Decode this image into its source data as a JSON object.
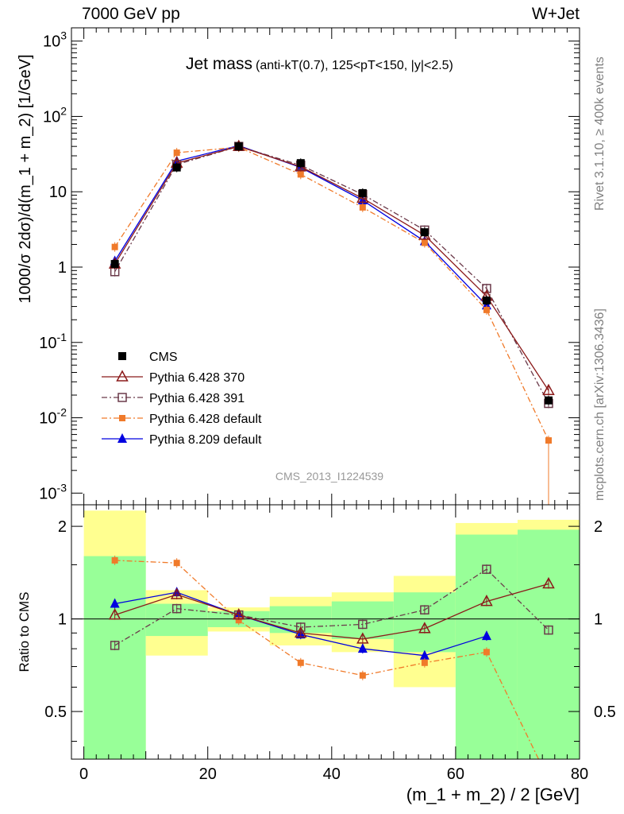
{
  "header": {
    "left": "7000 GeV pp",
    "right": "W+Jet"
  },
  "side_labels": {
    "rivet": "Rivet 3.1.10, ≥ 400k events",
    "mcplots": "mcplots.cern.ch [arXiv:1306.3436]"
  },
  "analysis_tag": "CMS_2013_I1224539",
  "chart_data": [
    {
      "type": "line",
      "panel": "main",
      "title": "Jet mass",
      "subtitle": "(anti-kT(0.7), 125<pT<150, |y|<2.5)",
      "ylabel": "1000/σ 2dσ)/d(m_1 + m_2) [1/GeV]",
      "yscale": "log",
      "ylim": [
        0.0007,
        1500
      ],
      "xlim": [
        -2,
        80
      ],
      "x": [
        5,
        15,
        25,
        35,
        45,
        55,
        65,
        75
      ],
      "y_tick_labels": [
        "10^-3",
        "10^-2",
        "10^-1",
        "1",
        "10",
        "10^2",
        "10^3"
      ],
      "legend_position": "bottom-left",
      "series": [
        {
          "name": "CMS",
          "color": "#000000",
          "marker": "square-filled",
          "line": "none",
          "values": [
            1.1,
            21,
            40,
            24,
            9.6,
            2.9,
            0.36,
            0.017
          ]
        },
        {
          "name": "Pythia 6.428 370",
          "color": "#8b1a1a",
          "marker": "triangle-open",
          "line": "solid",
          "values": [
            1.1,
            24,
            40,
            21.5,
            8.2,
            2.65,
            0.41,
            0.023
          ]
        },
        {
          "name": "Pythia 6.428 391",
          "color": "#6b3a4a",
          "marker": "square-open",
          "line": "dashdot",
          "values": [
            0.87,
            23,
            40,
            22.5,
            9.2,
            3.1,
            0.52,
            0.0155
          ]
        },
        {
          "name": "Pythia 6.428 default",
          "color": "#f07a2a",
          "marker": "square-filled-small",
          "line": "dashdot",
          "values": [
            1.85,
            33,
            39,
            17,
            6.2,
            2.1,
            0.27,
            0.005
          ]
        },
        {
          "name": "Pythia 8.209 default",
          "color": "#0000e0",
          "marker": "triangle-filled",
          "line": "solid",
          "values": [
            1.2,
            25.5,
            41,
            21,
            7.7,
            2.2,
            0.31,
            null
          ]
        }
      ]
    },
    {
      "type": "line",
      "panel": "ratio",
      "ylabel": "Ratio to CMS",
      "xlabel": "(m_1 + m_2) / 2 [GeV]",
      "yscale": "log",
      "ylim": [
        0.35,
        2.35
      ],
      "xlim": [
        -2,
        80
      ],
      "x_ticks": [
        0,
        20,
        40,
        60,
        80
      ],
      "y_ticks": [
        0.5,
        1,
        2
      ],
      "reference_line": 1,
      "bands": {
        "bins": [
          [
            0,
            10
          ],
          [
            10,
            20
          ],
          [
            20,
            30
          ],
          [
            30,
            40
          ],
          [
            40,
            50
          ],
          [
            50,
            60
          ],
          [
            60,
            70
          ],
          [
            70,
            80
          ]
        ],
        "green": [
          [
            0.2,
            1.6
          ],
          [
            0.88,
            1.12
          ],
          [
            0.94,
            1.06
          ],
          [
            0.9,
            1.1
          ],
          [
            0.86,
            1.14
          ],
          [
            0.78,
            1.22
          ],
          [
            0.32,
            1.88
          ],
          [
            0.2,
            1.95
          ]
        ],
        "yellow": [
          [
            0.2,
            2.25
          ],
          [
            0.76,
            1.24
          ],
          [
            0.91,
            1.09
          ],
          [
            0.82,
            1.18
          ],
          [
            0.78,
            1.22
          ],
          [
            0.6,
            1.38
          ],
          [
            0.2,
            2.05
          ],
          [
            0.2,
            2.1
          ]
        ]
      },
      "series": [
        {
          "name": "Pythia 6.428 370",
          "color": "#8b1a1a",
          "marker": "triangle-open",
          "line": "solid",
          "values": [
            1.03,
            1.2,
            1.03,
            0.9,
            0.86,
            0.93,
            1.14,
            1.3
          ]
        },
        {
          "name": "Pythia 6.428 391",
          "color": "#6b3a4a",
          "marker": "square-open",
          "line": "dashdot",
          "values": [
            0.82,
            1.08,
            1.03,
            0.94,
            0.96,
            1.07,
            1.45,
            0.92
          ]
        },
        {
          "name": "Pythia 6.428 default",
          "color": "#f07a2a",
          "marker": "square-filled-small",
          "line": "dashdot",
          "values": [
            1.55,
            1.52,
            0.99,
            0.72,
            0.655,
            0.72,
            0.78,
            0.3
          ]
        },
        {
          "name": "Pythia 8.209 default",
          "color": "#0000e0",
          "marker": "triangle-filled",
          "line": "solid",
          "values": [
            1.12,
            1.22,
            1.03,
            0.89,
            0.8,
            0.76,
            0.88,
            null
          ]
        }
      ]
    }
  ]
}
